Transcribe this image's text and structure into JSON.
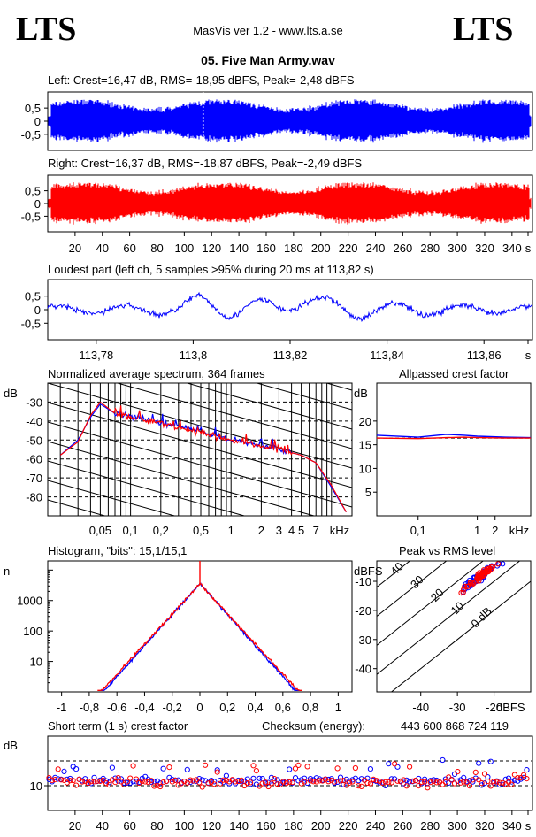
{
  "header": {
    "logo_left": "LTS",
    "logo_right": "LTS",
    "app_title": "MasVis ver 1.2 - www.lts.a.se",
    "file_title": "05. Five Man Army.wav"
  },
  "colors": {
    "left_channel": "#0000ff",
    "right_channel": "#ff0000",
    "grid": "#000000"
  },
  "chart_data": [
    {
      "id": "left",
      "type": "area",
      "title": "Left: Crest=16,47 dB, RMS=-18,95 dBFS, Peak=-2,48 dBFS",
      "yticks": [
        "0,5",
        "0",
        "-0,5"
      ],
      "ylim": [
        -1,
        1
      ],
      "xlim": [
        0,
        355
      ],
      "series": [
        {
          "color": "#0000ff",
          "peak": 0.75,
          "marker_s": 113.82
        }
      ]
    },
    {
      "id": "right",
      "type": "area",
      "title": "Right: Crest=16,37 dB, RMS=-18,87 dBFS, Peak=-2,49 dBFS",
      "yticks": [
        "0,5",
        "0",
        "-0,5"
      ],
      "ylim": [
        -1,
        1
      ],
      "xlim": [
        0,
        355
      ],
      "xticks": [
        "20",
        "40",
        "60",
        "80",
        "100",
        "120",
        "140",
        "160",
        "180",
        "200",
        "220",
        "240",
        "260",
        "280",
        "300",
        "320",
        "340",
        "s"
      ],
      "series": [
        {
          "color": "#ff0000",
          "peak": 0.75
        }
      ]
    },
    {
      "id": "loudest",
      "type": "line",
      "title": "Loudest part (left  ch, 5 samples >95% during 20 ms at 113,82 s)",
      "yticks": [
        "0,5",
        "0",
        "-0,5"
      ],
      "xticks": [
        "113,78",
        "113,8",
        "113,82",
        "113,84",
        "113,86",
        "s"
      ],
      "xlim": [
        113.77,
        113.87
      ],
      "ylim": [
        -1,
        1
      ]
    },
    {
      "id": "spectrum",
      "type": "line",
      "title": "Normalized average spectrum, 364 frames",
      "ylabel": "dB",
      "yticks": [
        "-30",
        "-40",
        "-50",
        "-60",
        "-70",
        "-80"
      ],
      "xticks": [
        "0,05",
        "0,1",
        "0,2",
        "0,5",
        "1",
        "2",
        "3",
        "4",
        "5",
        "7",
        "kHz"
      ],
      "ylim": [
        -90,
        -20
      ],
      "series": [
        {
          "name": "L",
          "color": "#0000ff",
          "points": [
            [
              0.02,
              -58
            ],
            [
              0.03,
              -50
            ],
            [
              0.04,
              -38
            ],
            [
              0.05,
              -31
            ],
            [
              0.07,
              -36
            ],
            [
              0.1,
              -37
            ],
            [
              0.2,
              -41
            ],
            [
              0.3,
              -43
            ],
            [
              0.5,
              -45
            ],
            [
              0.7,
              -48
            ],
            [
              1,
              -50
            ],
            [
              2,
              -53
            ],
            [
              3,
              -55
            ],
            [
              5,
              -58
            ],
            [
              7,
              -62
            ],
            [
              10,
              -75
            ],
            [
              14,
              -88
            ]
          ]
        },
        {
          "name": "R",
          "color": "#ff0000",
          "points": [
            [
              0.02,
              -58
            ],
            [
              0.03,
              -51
            ],
            [
              0.04,
              -37
            ],
            [
              0.05,
              -30
            ],
            [
              0.07,
              -36
            ],
            [
              0.1,
              -38
            ],
            [
              0.2,
              -41
            ],
            [
              0.3,
              -44
            ],
            [
              0.5,
              -46
            ],
            [
              0.7,
              -48
            ],
            [
              1,
              -50
            ],
            [
              2,
              -53
            ],
            [
              3,
              -55
            ],
            [
              5,
              -58
            ],
            [
              7,
              -62
            ],
            [
              10,
              -74
            ],
            [
              14,
              -88
            ]
          ]
        }
      ]
    },
    {
      "id": "allpassed",
      "type": "line",
      "title": "Allpassed crest factor",
      "ylabel": "dB",
      "yticks": [
        "20",
        "15",
        "10",
        "5"
      ],
      "xticks": [
        "0,1",
        "1",
        "2",
        "kHz"
      ],
      "ylim": [
        0,
        28
      ],
      "series": [
        {
          "name": "L",
          "color": "#0000ff",
          "points": [
            [
              0.02,
              17.0
            ],
            [
              0.1,
              16.6
            ],
            [
              0.3,
              17.2
            ],
            [
              0.6,
              17.0
            ],
            [
              1,
              16.8
            ],
            [
              3,
              16.6
            ],
            [
              8,
              16.5
            ]
          ]
        },
        {
          "name": "R",
          "color": "#ff0000",
          "points": [
            [
              0.02,
              16.4
            ],
            [
              0.1,
              16.3
            ],
            [
              0.3,
              16.5
            ],
            [
              0.6,
              16.6
            ],
            [
              1,
              16.5
            ],
            [
              3,
              16.4
            ],
            [
              8,
              16.4
            ]
          ]
        }
      ]
    },
    {
      "id": "histogram",
      "type": "line",
      "title": "Histogram, \"bits\": 15,1/15,1",
      "ylabel": "n",
      "yticks": [
        "1000",
        "100",
        "10"
      ],
      "xticks": [
        "-1",
        "-0,8",
        "-0,6",
        "-0,4",
        "-0,2",
        "0",
        "0,2",
        "0,4",
        "0,6",
        "0,8",
        "1"
      ],
      "xlim": [
        -1.1,
        1.1
      ],
      "ylim_log10": [
        0,
        4.3
      ],
      "series": [
        {
          "name": "L",
          "color": "#0000ff",
          "peak_log10": 3.55,
          "halfwidth": 0.72
        },
        {
          "name": "R",
          "color": "#ff0000",
          "peak_log10": 3.55,
          "halfwidth": 0.74
        }
      ]
    },
    {
      "id": "peak_rms",
      "type": "scatter",
      "title": "Peak vs RMS level",
      "ylabel": "dBFS",
      "xlabel": "dBFS",
      "yticks": [
        "-10",
        "-20",
        "-30",
        "-40"
      ],
      "xticks": [
        "-40",
        "-30",
        "-20"
      ],
      "diag_labels": [
        "40",
        "30",
        "20",
        "10",
        "0 dB"
      ],
      "xlim": [
        -52,
        -10
      ],
      "ylim": [
        -48,
        -3
      ],
      "series": [
        {
          "name": "L",
          "color": "#0000ff",
          "center": [
            -22,
            -9
          ],
          "spread": [
            5,
            3
          ]
        },
        {
          "name": "R",
          "color": "#ff0000",
          "center": [
            -22,
            -9
          ],
          "spread": [
            5,
            3
          ]
        }
      ]
    },
    {
      "id": "short_crest",
      "type": "scatter",
      "title": "Short term (1 s) crest factor",
      "checksum_label": "Checksum (energy):",
      "checksum_value": "443 600 868 724 119",
      "ylabel": "dB",
      "yticks": [
        "10"
      ],
      "xticks": [
        "20",
        "40",
        "60",
        "80",
        "100",
        "120",
        "140",
        "160",
        "180",
        "200",
        "220",
        "240",
        "260",
        "280",
        "300",
        "320",
        "340",
        "s"
      ],
      "xlim": [
        0,
        355
      ],
      "ylim": [
        0,
        30
      ],
      "series": [
        {
          "name": "L",
          "color": "#0000ff",
          "mean": 12,
          "spread": 3
        },
        {
          "name": "R",
          "color": "#ff0000",
          "mean": 11.5,
          "spread": 3
        }
      ]
    }
  ]
}
